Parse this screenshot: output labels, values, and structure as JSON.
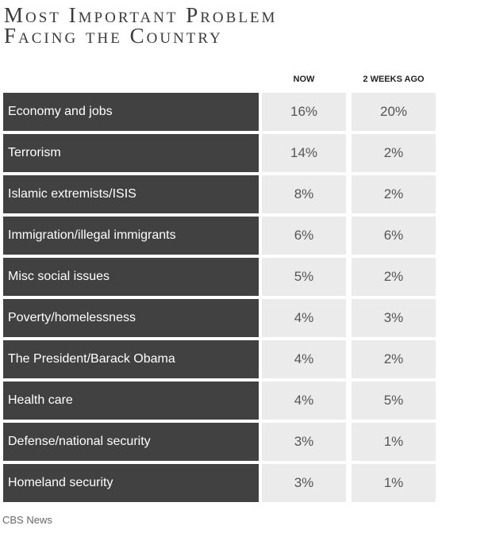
{
  "title_line1": "Most Important Problem",
  "title_line2": "Facing the Country",
  "source": "CBS News",
  "colors": {
    "label_bg": "#414141",
    "value_bg": "#ebebeb"
  },
  "chart_data": {
    "type": "table",
    "title": "Most Important Problem Facing the Country",
    "columns": [
      "NOW",
      "2 WEEKS AGO"
    ],
    "rows": [
      {
        "label": "Economy and jobs",
        "now": "16%",
        "ago": "20%"
      },
      {
        "label": "Terrorism",
        "now": "14%",
        "ago": "2%"
      },
      {
        "label": "Islamic extremists/ISIS",
        "now": "8%",
        "ago": "2%"
      },
      {
        "label": "Immigration/illegal immigrants",
        "now": "6%",
        "ago": "6%"
      },
      {
        "label": "Misc social issues",
        "now": "5%",
        "ago": "2%"
      },
      {
        "label": "Poverty/homelessness",
        "now": "4%",
        "ago": "3%"
      },
      {
        "label": "The President/Barack Obama",
        "now": "4%",
        "ago": "2%"
      },
      {
        "label": "Health care",
        "now": "4%",
        "ago": "5%"
      },
      {
        "label": "Defense/national security",
        "now": "3%",
        "ago": "1%"
      },
      {
        "label": "Homeland security",
        "now": "3%",
        "ago": "1%"
      }
    ]
  }
}
